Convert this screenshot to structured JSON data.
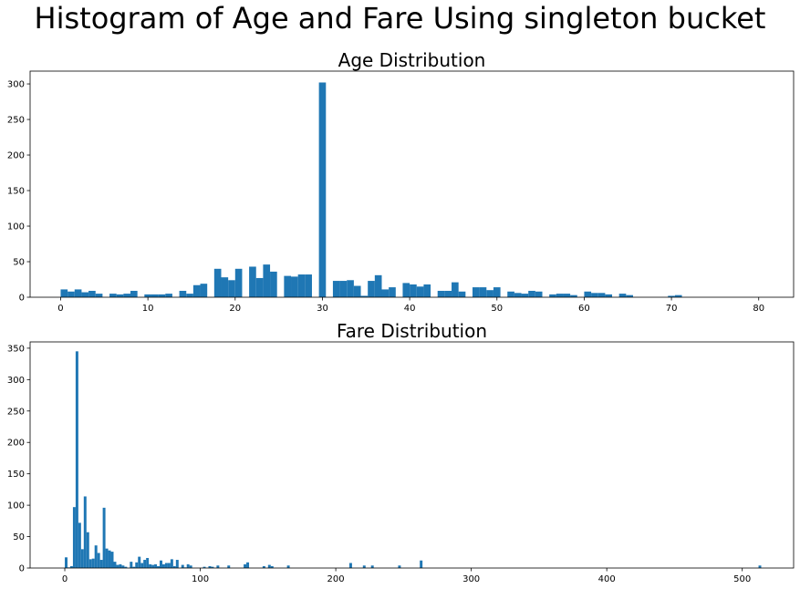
{
  "suptitle": "Histogram of Age and Fare Using singleton bucket",
  "bar_color": "#1f77b4",
  "chart_data": [
    {
      "type": "bar",
      "title": "Age Distribution",
      "xlabel": "",
      "ylabel": "",
      "xlim": [
        -3.5,
        84
      ],
      "ylim": [
        0,
        318
      ],
      "xticks": [
        0,
        10,
        20,
        30,
        40,
        50,
        60,
        70,
        80
      ],
      "yticks": [
        0,
        50,
        100,
        150,
        200,
        250,
        300
      ],
      "bin_width": 0.8,
      "bins": [
        [
          0.4,
          11
        ],
        [
          1.2,
          8
        ],
        [
          2.0,
          11
        ],
        [
          2.8,
          7
        ],
        [
          3.6,
          9
        ],
        [
          4.4,
          5
        ],
        [
          5.2,
          0
        ],
        [
          6.0,
          5
        ],
        [
          6.8,
          4
        ],
        [
          7.6,
          5
        ],
        [
          8.4,
          9
        ],
        [
          9.2,
          0
        ],
        [
          10.0,
          4
        ],
        [
          10.8,
          4
        ],
        [
          11.6,
          4
        ],
        [
          12.4,
          5
        ],
        [
          13.2,
          0
        ],
        [
          14.0,
          9
        ],
        [
          14.8,
          5
        ],
        [
          15.6,
          17
        ],
        [
          16.4,
          19
        ],
        [
          17.2,
          0
        ],
        [
          18.0,
          40
        ],
        [
          18.8,
          28
        ],
        [
          19.6,
          24
        ],
        [
          20.4,
          40
        ],
        [
          21.2,
          0
        ],
        [
          22.0,
          43
        ],
        [
          22.8,
          27
        ],
        [
          23.6,
          46
        ],
        [
          24.4,
          36
        ],
        [
          25.2,
          0
        ],
        [
          26.0,
          30
        ],
        [
          26.8,
          29
        ],
        [
          27.6,
          32
        ],
        [
          28.4,
          32
        ],
        [
          29.2,
          0
        ],
        [
          30.0,
          302
        ],
        [
          30.8,
          0
        ],
        [
          31.6,
          23
        ],
        [
          32.4,
          23
        ],
        [
          33.2,
          24
        ],
        [
          34.0,
          16
        ],
        [
          34.8,
          2
        ],
        [
          35.6,
          23
        ],
        [
          36.4,
          31
        ],
        [
          37.2,
          11
        ],
        [
          38.0,
          14
        ],
        [
          38.8,
          0
        ],
        [
          39.6,
          20
        ],
        [
          40.4,
          18
        ],
        [
          41.2,
          15
        ],
        [
          42.0,
          18
        ],
        [
          42.8,
          0
        ],
        [
          43.6,
          9
        ],
        [
          44.4,
          9
        ],
        [
          45.2,
          21
        ],
        [
          46.0,
          8
        ],
        [
          46.8,
          0
        ],
        [
          47.6,
          14
        ],
        [
          48.4,
          14
        ],
        [
          49.2,
          10
        ],
        [
          50.0,
          14
        ],
        [
          50.8,
          0
        ],
        [
          51.6,
          8
        ],
        [
          52.4,
          6
        ],
        [
          53.2,
          5
        ],
        [
          54.0,
          9
        ],
        [
          54.8,
          8
        ],
        [
          55.6,
          0
        ],
        [
          56.4,
          4
        ],
        [
          57.2,
          5
        ],
        [
          58.0,
          5
        ],
        [
          58.8,
          3
        ],
        [
          59.6,
          0
        ],
        [
          60.4,
          8
        ],
        [
          61.2,
          6
        ],
        [
          62.0,
          6
        ],
        [
          62.8,
          4
        ],
        [
          63.6,
          0
        ],
        [
          64.4,
          5
        ],
        [
          65.2,
          3
        ],
        [
          66.0,
          0
        ],
        [
          70.0,
          2
        ],
        [
          70.8,
          3
        ]
      ]
    },
    {
      "type": "bar",
      "title": "Fare Distribution",
      "xlabel": "",
      "ylabel": "",
      "xlim": [
        -25.6,
        537.9
      ],
      "ylim": [
        0,
        360
      ],
      "xticks": [
        0,
        100,
        200,
        300,
        400,
        500
      ],
      "yticks": [
        0,
        50,
        100,
        150,
        200,
        250,
        300,
        350
      ],
      "bin_width": 2.0,
      "bins": [
        [
          1,
          17
        ],
        [
          3,
          1
        ],
        [
          5,
          3
        ],
        [
          7,
          97
        ],
        [
          9,
          345
        ],
        [
          11,
          72
        ],
        [
          13,
          30
        ],
        [
          15,
          114
        ],
        [
          17,
          57
        ],
        [
          19,
          14
        ],
        [
          21,
          15
        ],
        [
          23,
          36
        ],
        [
          25,
          24
        ],
        [
          27,
          13
        ],
        [
          29,
          96
        ],
        [
          31,
          31
        ],
        [
          33,
          28
        ],
        [
          35,
          26
        ],
        [
          37,
          10
        ],
        [
          39,
          5
        ],
        [
          41,
          6
        ],
        [
          43,
          4
        ],
        [
          45,
          2
        ],
        [
          47,
          0
        ],
        [
          49,
          10
        ],
        [
          51,
          2
        ],
        [
          53,
          9
        ],
        [
          55,
          18
        ],
        [
          57,
          8
        ],
        [
          59,
          13
        ],
        [
          61,
          16
        ],
        [
          63,
          6
        ],
        [
          65,
          5
        ],
        [
          67,
          6
        ],
        [
          69,
          3
        ],
        [
          71,
          12
        ],
        [
          73,
          6
        ],
        [
          75,
          8
        ],
        [
          77,
          8
        ],
        [
          79,
          14
        ],
        [
          81,
          3
        ],
        [
          83,
          13
        ],
        [
          85,
          0
        ],
        [
          87,
          5
        ],
        [
          89,
          1
        ],
        [
          91,
          6
        ],
        [
          93,
          4
        ],
        [
          95,
          0
        ],
        [
          103,
          2
        ],
        [
          107,
          3
        ],
        [
          109,
          2
        ],
        [
          113,
          4
        ],
        [
          119,
          0
        ],
        [
          121,
          4
        ],
        [
          133,
          6
        ],
        [
          135,
          9
        ],
        [
          147,
          3
        ],
        [
          151,
          5
        ],
        [
          153,
          3
        ],
        [
          165,
          4
        ],
        [
          211,
          8
        ],
        [
          221,
          4
        ],
        [
          227,
          4
        ],
        [
          247,
          4
        ],
        [
          263,
          12
        ],
        [
          513,
          4
        ]
      ]
    }
  ]
}
